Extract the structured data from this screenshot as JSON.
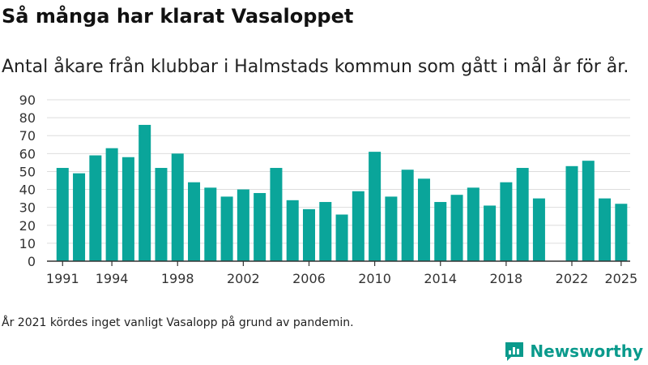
{
  "title": "Så många har klarat Vasaloppet",
  "subtitle": "Antal åkare från klubbar i Halmstads kommun som gått i mål år för år.",
  "footnote": "År 2021 kördes inget vanligt Vasalopp på grund av pandemin.",
  "brand": {
    "name": "Newsworthy",
    "icon": "newsworthy-logo-icon"
  },
  "colors": {
    "bar": "#0aa59a",
    "grid": "#dddddd",
    "axis": "#333333",
    "brand": "#0a9a8c"
  },
  "chart_data": {
    "type": "bar",
    "title": "Så många har klarat Vasaloppet",
    "xlabel": "",
    "ylabel": "",
    "ylim": [
      0,
      90
    ],
    "yticks": [
      0,
      10,
      20,
      30,
      40,
      50,
      60,
      70,
      80,
      90
    ],
    "xticks": [
      1991,
      1994,
      1998,
      2002,
      2006,
      2010,
      2014,
      2018,
      2022,
      2025
    ],
    "grid": true,
    "categories": [
      1991,
      1992,
      1993,
      1994,
      1995,
      1996,
      1997,
      1998,
      1999,
      2000,
      2001,
      2002,
      2003,
      2004,
      2005,
      2006,
      2007,
      2008,
      2009,
      2010,
      2011,
      2012,
      2013,
      2014,
      2015,
      2016,
      2017,
      2018,
      2019,
      2020,
      2021,
      2022,
      2023,
      2024,
      2025
    ],
    "values": [
      52,
      49,
      59,
      63,
      58,
      76,
      52,
      60,
      44,
      41,
      36,
      40,
      38,
      52,
      34,
      29,
      33,
      26,
      39,
      61,
      36,
      51,
      46,
      33,
      37,
      41,
      31,
      44,
      52,
      35,
      null,
      53,
      56,
      35,
      32
    ]
  }
}
